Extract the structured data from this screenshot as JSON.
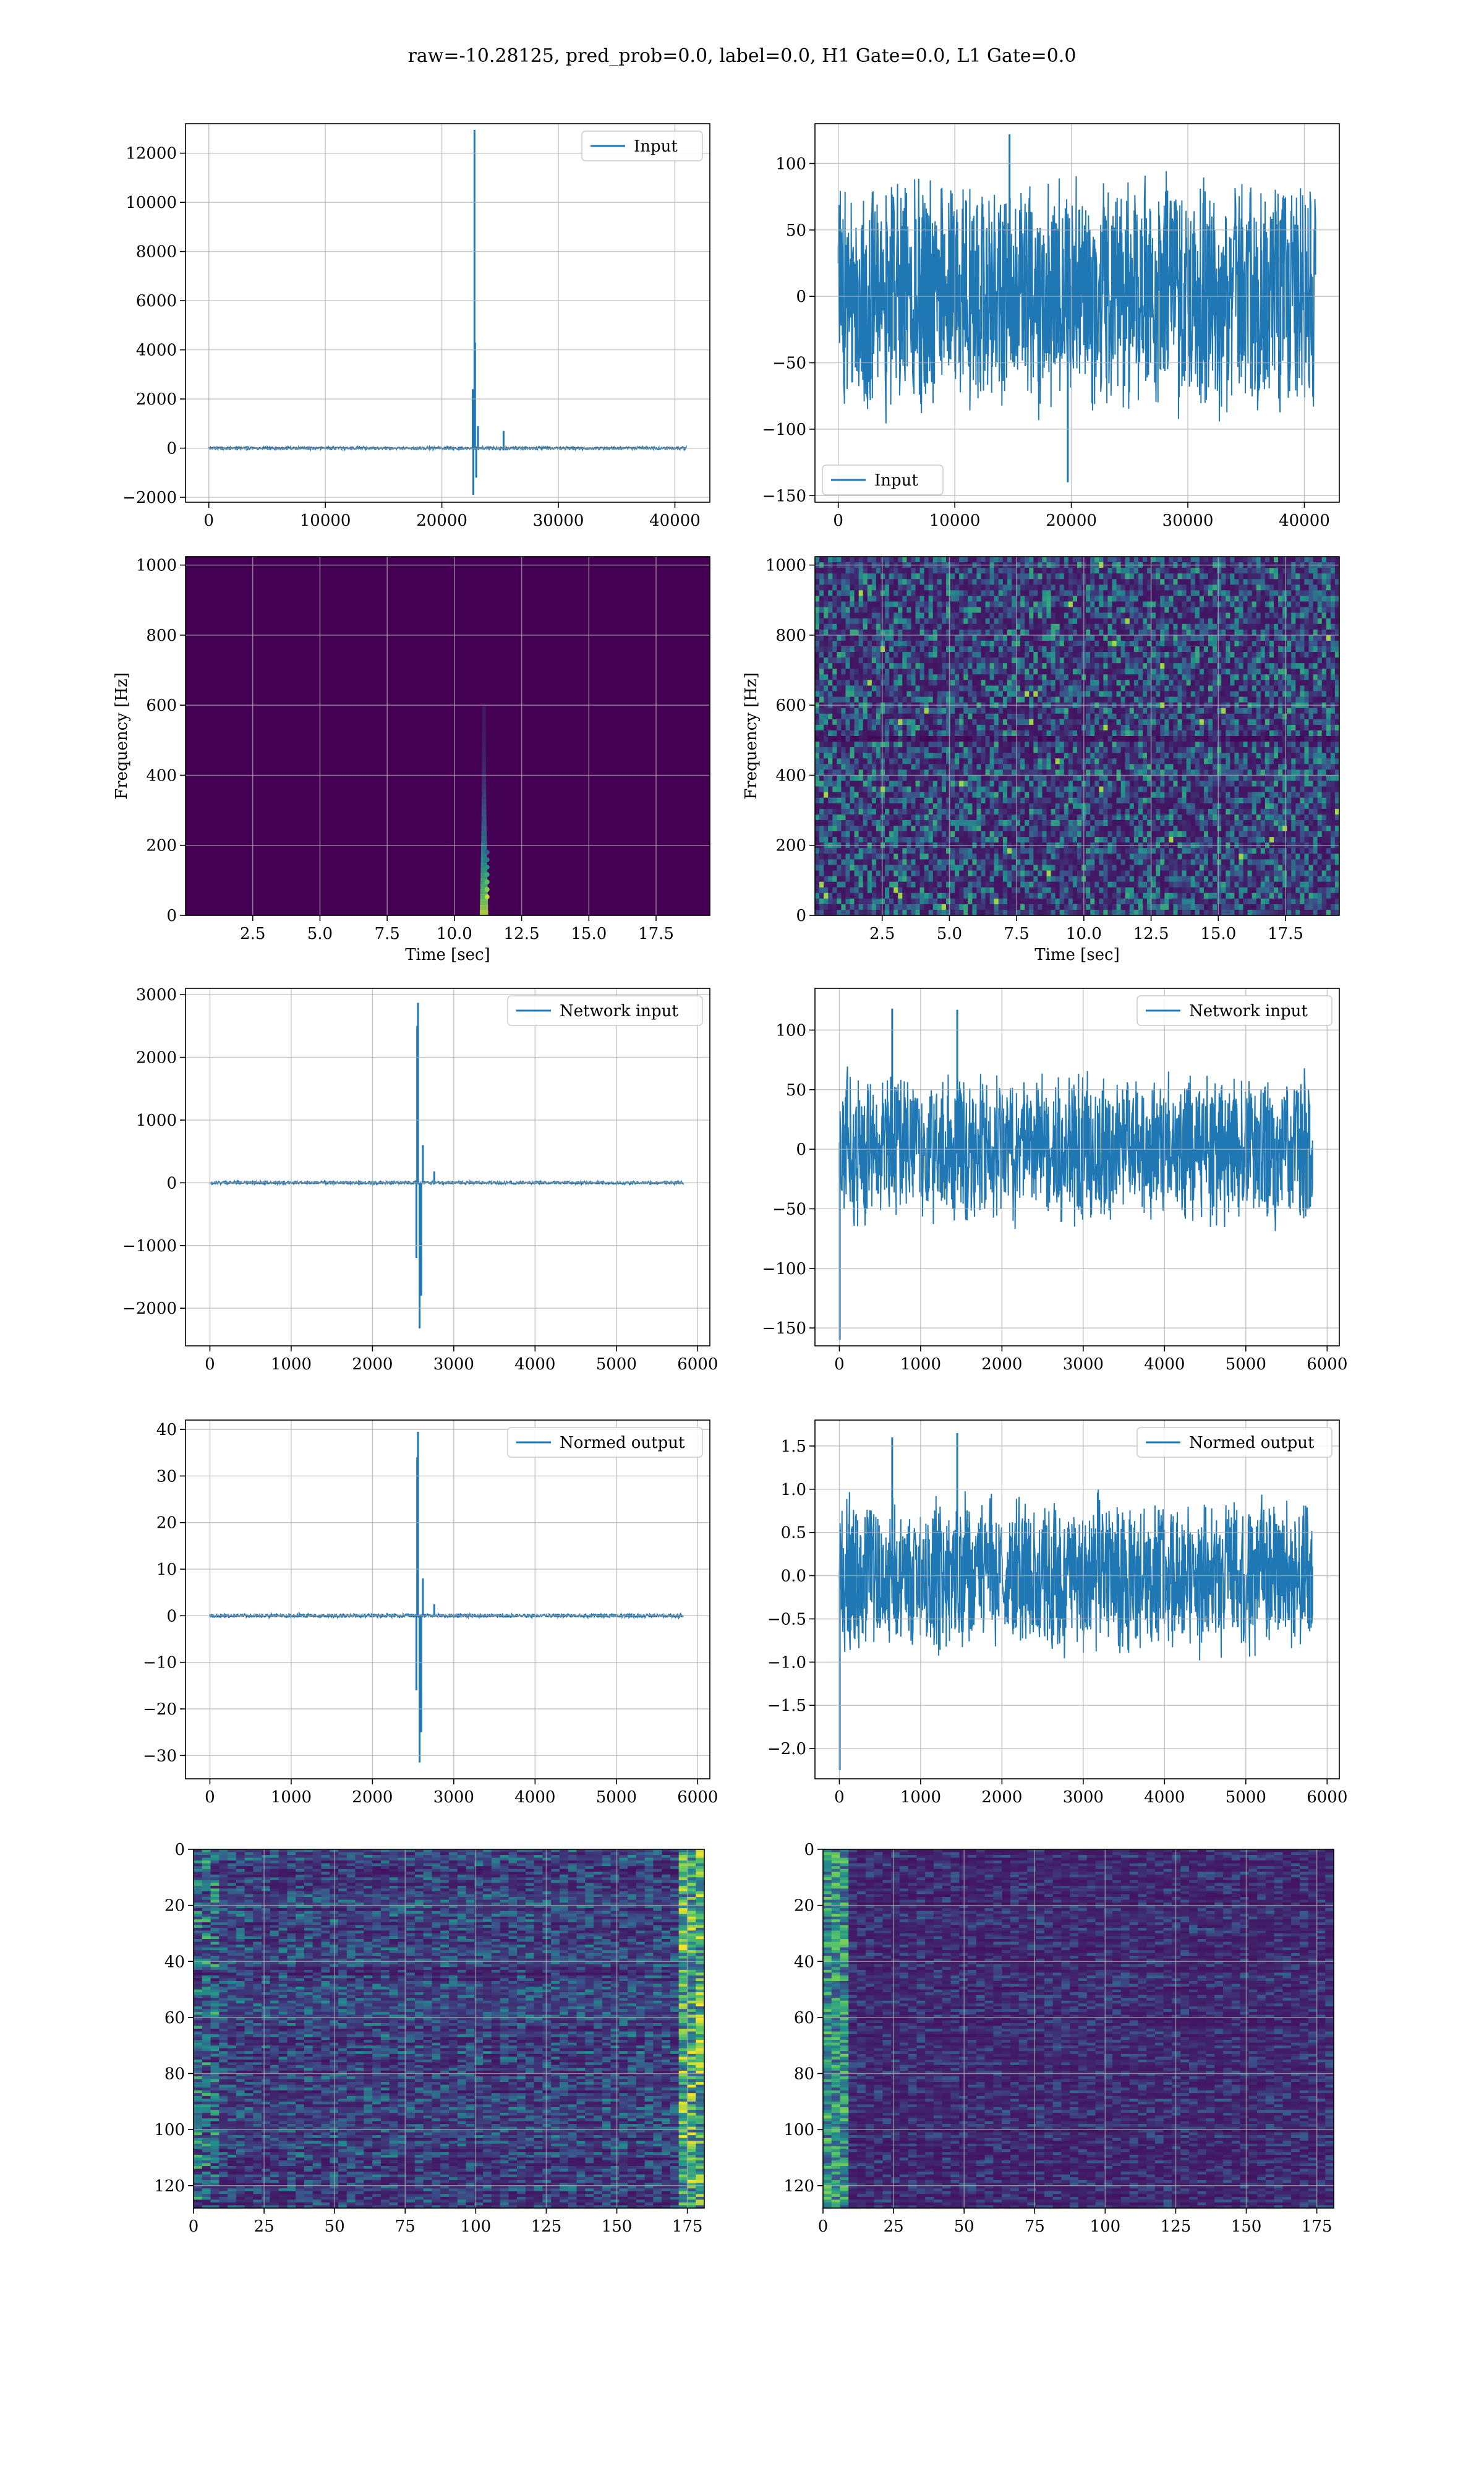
{
  "figure": {
    "suptitle": "raw=-10.28125, pred_prob=0.0, label=0.0, H1 Gate=0.0, L1 Gate=0.0",
    "colors": {
      "line": "#1f77b4",
      "viridis_dark": "#440154",
      "grid": "#b0b0b0"
    }
  },
  "chart_data": [
    {
      "id": "input_h1",
      "type": "line",
      "legend": "Input",
      "legend_loc": "upper right",
      "xlim": [
        -2000,
        43000
      ],
      "ylim": [
        -2200,
        13200
      ],
      "xticks": [
        0,
        10000,
        20000,
        30000,
        40000
      ],
      "yticks": [
        -2000,
        0,
        2000,
        4000,
        6000,
        8000,
        10000,
        12000
      ],
      "xticklabels": [
        "0",
        "10000",
        "20000",
        "30000",
        "40000"
      ],
      "yticklabels": [
        "−2000",
        "0",
        "2000",
        "4000",
        "6000",
        "8000",
        "10000",
        "12000"
      ],
      "x_range": [
        0,
        40960
      ],
      "noise_amp": 60,
      "spikes": [
        [
          22800,
          12950
        ],
        [
          22700,
          -1900
        ],
        [
          22850,
          4300
        ],
        [
          22650,
          2400
        ],
        [
          22950,
          -1200
        ],
        [
          23100,
          900
        ],
        [
          25300,
          700
        ]
      ],
      "grid": true
    },
    {
      "id": "input_l1",
      "type": "line",
      "legend": "Input",
      "legend_loc": "lower left",
      "xlim": [
        -2000,
        43000
      ],
      "ylim": [
        -155,
        130
      ],
      "xticks": [
        0,
        10000,
        20000,
        30000,
        40000
      ],
      "yticks": [
        -150,
        -100,
        -50,
        0,
        50,
        100
      ],
      "xticklabels": [
        "0",
        "10000",
        "20000",
        "30000",
        "40000"
      ],
      "yticklabels": [
        "−150",
        "−100",
        "−50",
        "0",
        "50",
        "100"
      ],
      "x_range": [
        0,
        40960
      ],
      "noise_amp": 100,
      "spikes": [
        [
          19700,
          -140
        ],
        [
          14700,
          122
        ]
      ],
      "grid": true
    },
    {
      "id": "spec_h1",
      "type": "heatmap",
      "xlabel": "Time [sec]",
      "ylabel": "Frequency [Hz]",
      "xlim": [
        0,
        19.5
      ],
      "ylim": [
        0,
        1024
      ],
      "xticks": [
        2.5,
        5.0,
        7.5,
        10.0,
        12.5,
        15.0,
        17.5
      ],
      "yticks": [
        0,
        200,
        400,
        600,
        800,
        1000
      ],
      "xticklabels": [
        "2.5",
        "5.0",
        "7.5",
        "10.0",
        "12.5",
        "15.0",
        "17.5"
      ],
      "yticklabels": [
        "0",
        "200",
        "400",
        "600",
        "800",
        "1000"
      ],
      "feature": {
        "time": 11.1,
        "freq_top": 600
      },
      "grid": true
    },
    {
      "id": "spec_l1",
      "type": "heatmap",
      "xlabel": "Time [sec]",
      "ylabel": "Frequency [Hz]",
      "xlim": [
        0,
        19.5
      ],
      "ylim": [
        0,
        1024
      ],
      "xticks": [
        2.5,
        5.0,
        7.5,
        10.0,
        12.5,
        15.0,
        17.5
      ],
      "yticks": [
        0,
        200,
        400,
        600,
        800,
        1000
      ],
      "xticklabels": [
        "2.5",
        "5.0",
        "7.5",
        "10.0",
        "12.5",
        "15.0",
        "17.5"
      ],
      "yticklabels": [
        "0",
        "200",
        "400",
        "600",
        "800",
        "1000"
      ],
      "grid": true
    },
    {
      "id": "net_h1",
      "type": "line",
      "legend": "Network input",
      "legend_loc": "upper right",
      "xlim": [
        -300,
        6150
      ],
      "ylim": [
        -2600,
        3100
      ],
      "xticks": [
        0,
        1000,
        2000,
        3000,
        4000,
        5000,
        6000
      ],
      "yticks": [
        -2000,
        -1000,
        0,
        1000,
        2000,
        3000
      ],
      "xticklabels": [
        "0",
        "1000",
        "2000",
        "3000",
        "4000",
        "5000",
        "6000"
      ],
      "yticklabels": [
        "−2000",
        "−1000",
        "0",
        "1000",
        "2000",
        "3000"
      ],
      "x_range": [
        0,
        5820
      ],
      "noise_amp": 25,
      "spikes": [
        [
          2560,
          2870
        ],
        [
          2580,
          -2320
        ],
        [
          2550,
          2500
        ],
        [
          2600,
          -1800
        ],
        [
          2540,
          -1200
        ],
        [
          2620,
          600
        ],
        [
          2760,
          180
        ]
      ],
      "grid": true
    },
    {
      "id": "net_l1",
      "type": "line",
      "legend": "Network input",
      "legend_loc": "upper right",
      "xlim": [
        -300,
        6150
      ],
      "ylim": [
        -165,
        135
      ],
      "xticks": [
        0,
        1000,
        2000,
        3000,
        4000,
        5000,
        6000
      ],
      "yticks": [
        -150,
        -100,
        -50,
        0,
        50,
        100
      ],
      "xticklabels": [
        "0",
        "1000",
        "2000",
        "3000",
        "4000",
        "5000",
        "6000"
      ],
      "yticklabels": [
        "−150",
        "−100",
        "−50",
        "0",
        "50",
        "100"
      ],
      "x_range": [
        0,
        5820
      ],
      "noise_amp": 70,
      "spikes": [
        [
          5,
          -160
        ],
        [
          650,
          118
        ],
        [
          1450,
          117
        ]
      ],
      "grid": true
    },
    {
      "id": "norm_h1",
      "type": "line",
      "legend": "Normed output",
      "legend_loc": "upper right",
      "xlim": [
        -300,
        6150
      ],
      "ylim": [
        -35,
        42
      ],
      "xticks": [
        0,
        1000,
        2000,
        3000,
        4000,
        5000,
        6000
      ],
      "yticks": [
        -30,
        -20,
        -10,
        0,
        10,
        20,
        30,
        40
      ],
      "xticklabels": [
        "0",
        "1000",
        "2000",
        "3000",
        "4000",
        "5000",
        "6000"
      ],
      "yticklabels": [
        "−30",
        "−20",
        "−10",
        "0",
        "10",
        "20",
        "30",
        "40"
      ],
      "x_range": [
        0,
        5820
      ],
      "noise_amp": 0.4,
      "spikes": [
        [
          2560,
          39.5
        ],
        [
          2580,
          -31.5
        ],
        [
          2550,
          34
        ],
        [
          2600,
          -25
        ],
        [
          2540,
          -16
        ],
        [
          2620,
          8
        ],
        [
          2760,
          2.5
        ]
      ],
      "grid": true
    },
    {
      "id": "norm_l1",
      "type": "line",
      "legend": "Normed output",
      "legend_loc": "upper right",
      "xlim": [
        -300,
        6150
      ],
      "ylim": [
        -2.35,
        1.8
      ],
      "xticks": [
        0,
        1000,
        2000,
        3000,
        4000,
        5000,
        6000
      ],
      "yticks": [
        -2.0,
        -1.5,
        -1.0,
        -0.5,
        0.0,
        0.5,
        1.0,
        1.5
      ],
      "xticklabels": [
        "0",
        "1000",
        "2000",
        "3000",
        "4000",
        "5000",
        "6000"
      ],
      "yticklabels": [
        "−2.0",
        "−1.5",
        "−1.0",
        "−0.5",
        "0.0",
        "0.5",
        "1.0",
        "1.5"
      ],
      "x_range": [
        0,
        5820
      ],
      "noise_amp": 1.0,
      "spikes": [
        [
          5,
          -2.25
        ],
        [
          650,
          1.6
        ],
        [
          1450,
          1.65
        ]
      ],
      "grid": true
    },
    {
      "id": "feat_h1",
      "type": "heatmap",
      "xlim": [
        0,
        181
      ],
      "ylim": [
        128,
        0
      ],
      "xticks": [
        0,
        25,
        50,
        75,
        100,
        125,
        150,
        175
      ],
      "yticks": [
        0,
        20,
        40,
        60,
        80,
        100,
        120
      ],
      "xticklabels": [
        "0",
        "25",
        "50",
        "75",
        "100",
        "125",
        "150",
        "175"
      ],
      "yticklabels": [
        "0",
        "20",
        "40",
        "60",
        "80",
        "100",
        "120"
      ],
      "grid": true
    },
    {
      "id": "feat_l1",
      "type": "heatmap",
      "xlim": [
        0,
        181
      ],
      "ylim": [
        128,
        0
      ],
      "xticks": [
        0,
        25,
        50,
        75,
        100,
        125,
        150,
        175
      ],
      "yticks": [
        0,
        20,
        40,
        60,
        80,
        100,
        120
      ],
      "xticklabels": [
        "0",
        "25",
        "50",
        "75",
        "100",
        "125",
        "150",
        "175"
      ],
      "yticklabels": [
        "0",
        "20",
        "40",
        "60",
        "80",
        "100",
        "120"
      ],
      "grid": true
    }
  ]
}
